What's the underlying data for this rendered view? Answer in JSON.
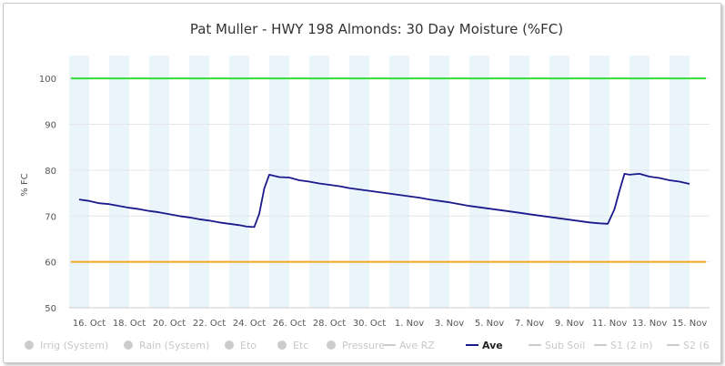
{
  "chart_data": {
    "type": "line",
    "title": "Pat Muller - HWY 198 Almonds: 30 Day Moisture (%FC)",
    "ylabel": "% FC",
    "ylim": [
      50,
      105
    ],
    "yticks": [
      50,
      60,
      70,
      80,
      90,
      100
    ],
    "xlim": [
      "2016-10-15",
      "2016-11-16"
    ],
    "x_tick_labels": [
      "16. Oct",
      "18. Oct",
      "20. Oct",
      "22. Oct",
      "24. Oct",
      "26. Oct",
      "28. Oct",
      "30. Oct",
      "1. Nov",
      "3. Nov",
      "5. Nov",
      "7. Nov",
      "9. Nov",
      "11. Nov",
      "13. Nov",
      "15. Nov"
    ],
    "grid": true,
    "day_bands": "alternating",
    "reference_lines": [
      {
        "value": 100,
        "color": "#33dd33"
      },
      {
        "value": 60,
        "color": "#f5a623"
      }
    ],
    "series": [
      {
        "name": "Ave",
        "color": "#1a1a8c",
        "x": [
          "2016-10-15 12:00",
          "2016-10-16 00:00",
          "2016-10-16 12:00",
          "2016-10-17 00:00",
          "2016-10-17 12:00",
          "2016-10-18 00:00",
          "2016-10-18 12:00",
          "2016-10-19 00:00",
          "2016-10-19 12:00",
          "2016-10-20 00:00",
          "2016-10-20 12:00",
          "2016-10-21 00:00",
          "2016-10-21 12:00",
          "2016-10-22 00:00",
          "2016-10-22 12:00",
          "2016-10-23 00:00",
          "2016-10-23 12:00",
          "2016-10-23 21:00",
          "2016-10-24 06:00",
          "2016-10-24 12:00",
          "2016-10-24 18:00",
          "2016-10-25 00:00",
          "2016-10-25 12:00",
          "2016-10-26 00:00",
          "2016-10-26 12:00",
          "2016-10-27 00:00",
          "2016-10-27 12:00",
          "2016-10-28 00:00",
          "2016-10-28 12:00",
          "2016-10-29 00:00",
          "2016-10-29 12:00",
          "2016-10-30 00:00",
          "2016-10-30 12:00",
          "2016-10-31 00:00",
          "2016-10-31 12:00",
          "2016-11-01 00:00",
          "2016-11-01 12:00",
          "2016-11-02 00:00",
          "2016-11-02 12:00",
          "2016-11-03 00:00",
          "2016-11-03 12:00",
          "2016-11-04 00:00",
          "2016-11-04 12:00",
          "2016-11-05 00:00",
          "2016-11-05 12:00",
          "2016-11-06 00:00",
          "2016-11-06 12:00",
          "2016-11-07 00:00",
          "2016-11-07 12:00",
          "2016-11-08 00:00",
          "2016-11-08 12:00",
          "2016-11-09 00:00",
          "2016-11-09 12:00",
          "2016-11-10 00:00",
          "2016-11-10 12:00",
          "2016-11-10 22:00",
          "2016-11-11 06:00",
          "2016-11-11 12:00",
          "2016-11-11 18:00",
          "2016-11-12 00:00",
          "2016-11-12 12:00",
          "2016-11-13 00:00",
          "2016-11-13 12:00",
          "2016-11-14 00:00",
          "2016-11-14 12:00",
          "2016-11-15 00:00"
        ],
        "values": [
          73.6,
          73.3,
          72.8,
          72.6,
          72.2,
          71.8,
          71.5,
          71.1,
          70.8,
          70.4,
          70.0,
          69.7,
          69.3,
          69.0,
          68.6,
          68.3,
          68.0,
          67.7,
          67.6,
          70.5,
          76.0,
          79.0,
          78.5,
          78.4,
          77.8,
          77.5,
          77.1,
          76.8,
          76.5,
          76.1,
          75.8,
          75.5,
          75.2,
          74.9,
          74.6,
          74.3,
          74.0,
          73.6,
          73.3,
          73.0,
          72.6,
          72.2,
          71.9,
          71.6,
          71.3,
          71.0,
          70.7,
          70.4,
          70.1,
          69.8,
          69.5,
          69.2,
          68.9,
          68.6,
          68.4,
          68.3,
          71.5,
          75.5,
          79.2,
          79.0,
          79.2,
          78.6,
          78.3,
          77.8,
          77.5,
          77.0
        ]
      }
    ],
    "legend": {
      "placement": "bottom",
      "items": [
        {
          "label": "Irrig (System)",
          "symbol": "circle",
          "active": false
        },
        {
          "label": "Rain (System)",
          "symbol": "circle",
          "active": false
        },
        {
          "label": "Eto",
          "symbol": "circle",
          "active": false
        },
        {
          "label": "Etc",
          "symbol": "circle",
          "active": false
        },
        {
          "label": "Pressure",
          "symbol": "circle",
          "active": false
        },
        {
          "label": "Ave RZ",
          "symbol": "line",
          "active": false
        },
        {
          "label": "Ave",
          "symbol": "line",
          "active": true
        },
        {
          "label": "Sub Soil",
          "symbol": "line",
          "active": false
        },
        {
          "label": "S1 (2 in)",
          "symbol": "line",
          "active": false
        },
        {
          "label": "S2 (6",
          "symbol": "line",
          "active": false
        }
      ],
      "inactive_color": "#cccccc",
      "active_color": "#1a1a8c"
    }
  }
}
